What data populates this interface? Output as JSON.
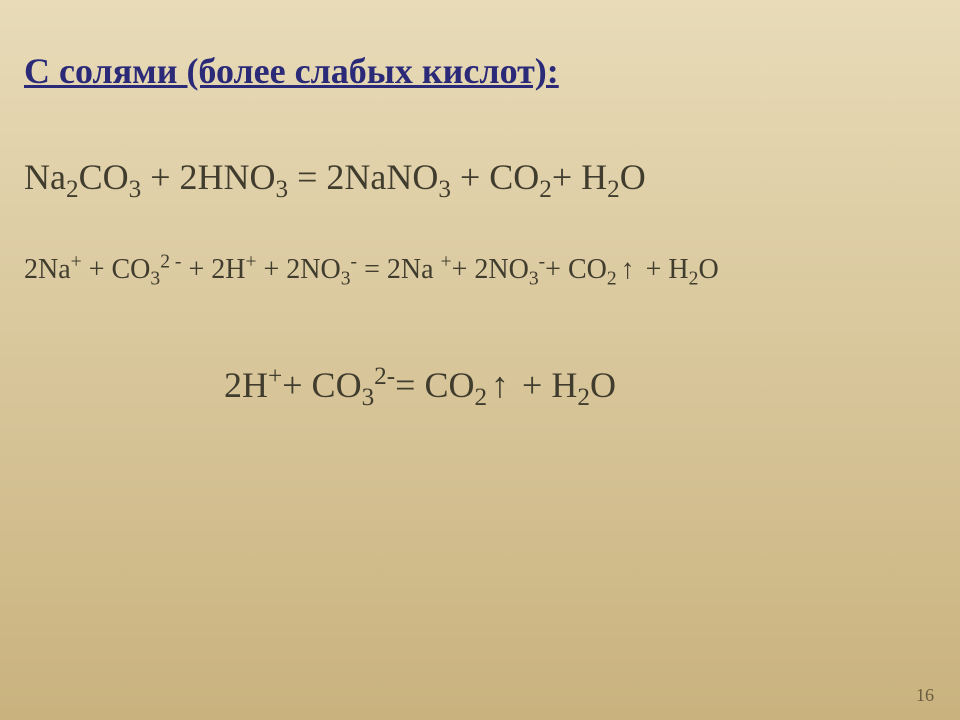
{
  "page": {
    "background_gradient": {
      "top": "#e8dbb8",
      "bottom": "#c9b27e"
    },
    "title": {
      "text": "С солями (более слабых кислот):",
      "fontsize": 36,
      "color": "#2a2a78",
      "weight": "bold",
      "underline": true
    },
    "equations": {
      "molecular": {
        "fontsize": 36,
        "color": "#403c2e",
        "parts": {
          "p1": "Na",
          "s1": "2",
          "p2": "CO",
          "s2": "3",
          "p3": " + 2HNO",
          "s3": "3",
          "p4": " = 2NaNO",
          "s4": "3",
          "p5": " + CO",
          "s5": "2",
          "p6": "+ H",
          "s6": "2",
          "p7": "O"
        }
      },
      "ionic_full": {
        "fontsize": 28,
        "color": "#403c2e",
        "parts": {
          "p1": "2Na",
          "sup1": "+",
          "p2": " + CO",
          "sub2": "3",
          "sup2": "2 -",
          "p3": " + 2H",
          "sup3": "+",
          "p4": " + 2NO",
          "sub4": "3",
          "sup4": "-",
          "p5": " = 2Na ",
          "sup5": "+",
          "p6": "+ 2NO",
          "sub6": "3",
          "sup6": "-",
          "p7": "+ CO",
          "sub7": "2",
          "arrow1": "↑",
          "p8": " + H",
          "sub8": "2",
          "p9": "O"
        }
      },
      "net_ionic": {
        "fontsize": 36,
        "color": "#403c2e",
        "parts": {
          "p1": "2H",
          "sup1": "+",
          "p2": "+ CO",
          "sub2": "3",
          "sup2": "2-",
          "p3": "= CO",
          "sub3": "2",
          "arrow1": "↑",
          "p4": " + H",
          "sub4": "2",
          "p5": "O"
        }
      }
    },
    "page_number": {
      "text": "16",
      "fontsize": 18,
      "color": "#6a5c3e"
    }
  }
}
